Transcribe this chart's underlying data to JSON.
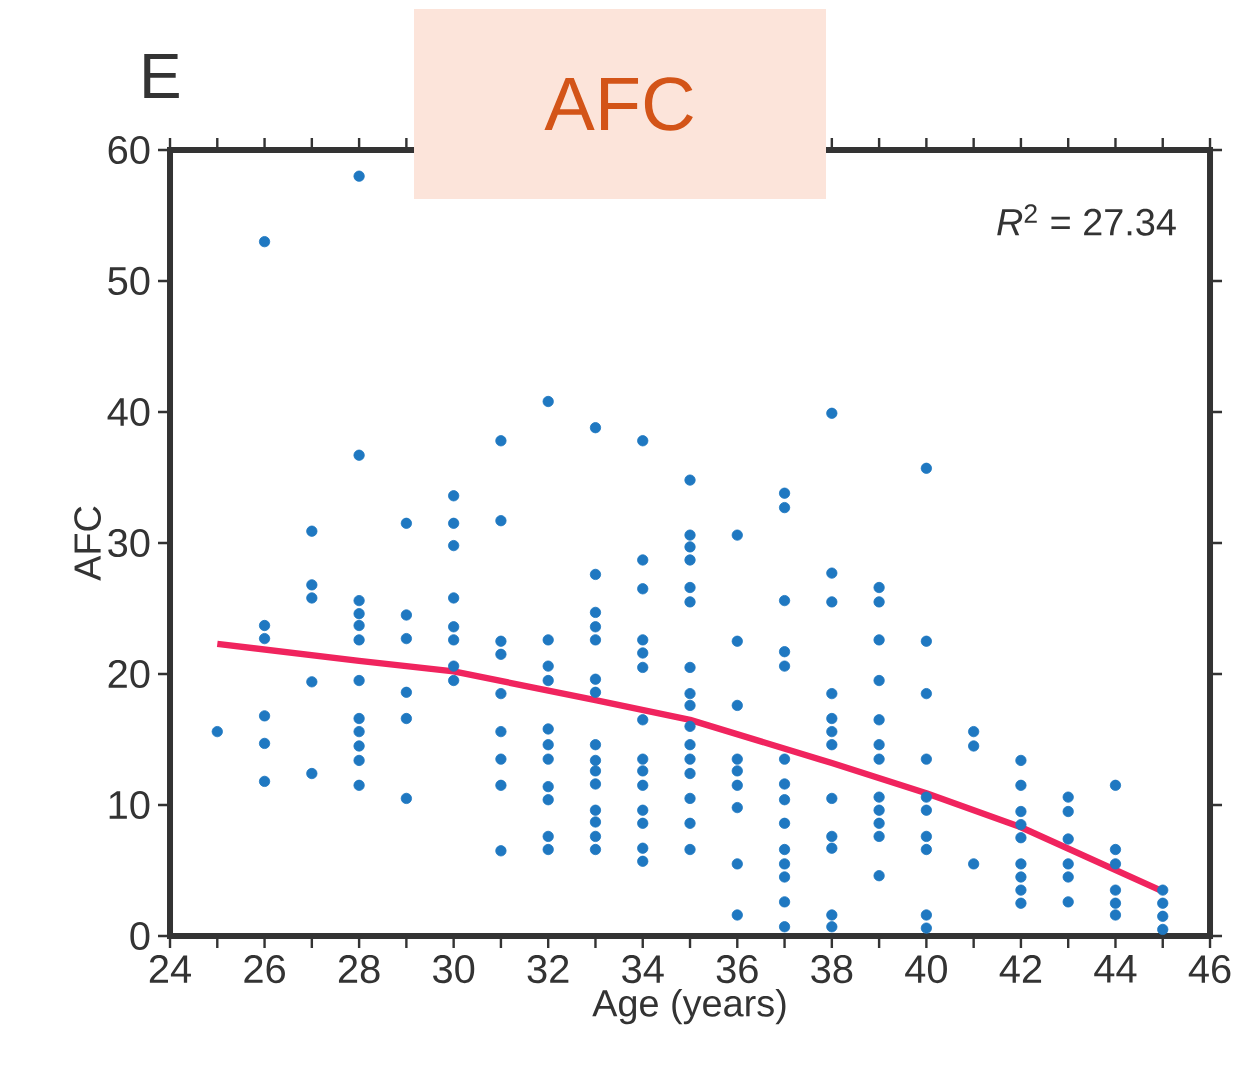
{
  "chart_data": {
    "type": "scatter",
    "title": "AFC",
    "xlabel": "Age (years)",
    "ylabel": "AFC",
    "annotations": [
      "E",
      "*R*$^{2}$ = 27.34"
    ],
    "xlim": [
      24,
      46
    ],
    "ylim": [
      0,
      60
    ],
    "xticks": [
      24,
      {
        "value": 25,
        "label": null
      },
      26,
      {
        "value": 27,
        "label": null
      },
      28,
      {
        "value": 29,
        "label": null
      },
      30,
      {
        "value": 31,
        "label": null
      },
      32,
      {
        "value": 33,
        "label": null
      },
      34,
      {
        "value": 35,
        "label": null
      },
      36,
      {
        "value": 37,
        "label": null
      },
      38,
      {
        "value": 39,
        "label": null
      },
      40,
      {
        "value": 41,
        "label": null
      },
      42,
      {
        "value": 43,
        "label": null
      },
      44,
      {
        "value": 45,
        "label": null
      },
      46
    ],
    "yticks": [
      0,
      10,
      20,
      30,
      40,
      50,
      60
    ],
    "marker": "circle",
    "series": [
      {
        "color": "#1f78c1",
        "x": [
          25,
          26,
          26,
          26,
          26,
          26,
          26,
          27,
          27,
          27,
          27,
          27,
          28,
          28,
          28,
          28,
          28,
          28,
          28,
          28,
          28,
          28,
          28,
          28,
          29,
          29,
          29,
          29,
          29,
          29,
          30,
          30,
          30,
          30,
          30,
          30,
          30,
          30,
          31,
          31,
          31,
          31,
          31,
          31,
          31,
          31,
          31,
          32,
          32,
          32,
          32,
          32,
          32,
          32,
          32,
          32,
          32,
          32,
          33,
          33,
          33,
          33,
          33,
          33,
          33,
          33,
          33,
          33,
          33,
          33,
          33,
          33,
          33,
          34,
          34,
          34,
          34,
          34,
          34,
          34,
          34,
          34,
          34,
          34,
          34,
          34,
          34,
          35,
          35,
          35,
          35,
          35,
          35,
          35,
          35,
          35,
          35,
          35,
          35,
          35,
          35,
          35,
          35,
          36,
          36,
          36,
          36,
          36,
          36,
          36,
          36,
          36,
          37,
          37,
          37,
          37,
          37,
          37,
          37,
          37,
          37,
          37,
          37,
          37,
          37,
          37,
          38,
          38,
          38,
          38,
          38,
          38,
          38,
          38,
          38,
          38,
          38,
          38,
          39,
          39,
          39,
          39,
          39,
          39,
          39,
          39,
          39,
          39,
          39,
          39,
          40,
          40,
          40,
          40,
          40,
          40,
          40,
          40,
          40,
          40,
          41,
          41,
          41,
          42,
          42,
          42,
          42,
          42,
          42,
          42,
          42,
          42,
          43,
          43,
          43,
          43,
          43,
          43,
          44,
          44,
          44,
          44,
          44,
          44,
          45,
          45,
          45,
          45
        ],
        "values": [
          15.6,
          53,
          23.7,
          22.7,
          16.8,
          14.7,
          11.8,
          30.9,
          26.8,
          25.8,
          19.4,
          12.4,
          58,
          36.7,
          25.6,
          24.6,
          23.7,
          22.6,
          19.5,
          16.6,
          15.6,
          14.5,
          13.4,
          11.5,
          31.5,
          24.5,
          22.7,
          18.6,
          16.6,
          10.5,
          33.6,
          31.5,
          29.8,
          25.8,
          23.6,
          22.6,
          20.6,
          19.5,
          37.8,
          31.7,
          22.5,
          21.5,
          18.5,
          15.6,
          13.5,
          11.5,
          6.5,
          40.8,
          22.6,
          20.6,
          19.5,
          15.8,
          14.6,
          13.5,
          11.4,
          10.4,
          7.6,
          6.6,
          38.8,
          27.6,
          24.7,
          23.6,
          22.6,
          19.6,
          18.6,
          14.6,
          13.4,
          12.6,
          11.6,
          9.6,
          8.7,
          7.6,
          6.6,
          37.8,
          28.7,
          26.5,
          22.6,
          21.6,
          20.5,
          16.5,
          13.5,
          12.6,
          11.5,
          9.6,
          8.6,
          6.7,
          5.7,
          34.8,
          30.6,
          29.7,
          28.7,
          26.6,
          25.5,
          20.5,
          18.5,
          17.6,
          16,
          14.6,
          13.5,
          12.4,
          10.5,
          8.6,
          6.6,
          30.6,
          22.5,
          17.6,
          13.5,
          12.6,
          11.5,
          9.8,
          5.5,
          1.6,
          33.8,
          32.7,
          25.6,
          21.7,
          20.6,
          13.5,
          11.6,
          10.4,
          8.6,
          6.6,
          5.5,
          4.5,
          2.6,
          0.7,
          39.9,
          27.7,
          25.5,
          18.5,
          16.6,
          15.6,
          14.6,
          10.5,
          7.6,
          6.7,
          1.6,
          0.7,
          26.6,
          25.5,
          22.6,
          19.5,
          16.5,
          14.6,
          13.5,
          10.6,
          9.6,
          8.6,
          7.6,
          4.6,
          35.7,
          22.5,
          18.5,
          13.5,
          10.6,
          9.6,
          7.6,
          6.6,
          1.6,
          0.6,
          15.6,
          14.5,
          5.5,
          13.4,
          11.5,
          9.5,
          8.5,
          7.5,
          5.5,
          4.5,
          3.5,
          2.5,
          10.6,
          9.5,
          7.4,
          5.5,
          4.5,
          2.6,
          11.5,
          6.6,
          5.5,
          3.5,
          2.5,
          1.6,
          3.5,
          2.5,
          1.5,
          0.5
        ]
      },
      {
        "type": "line",
        "color": "#f0245e",
        "marker": "none",
        "line_style": "solid",
        "x": [
          25,
          28,
          30,
          33,
          35,
          38,
          40,
          42,
          45
        ],
        "values": [
          22.3,
          21.0,
          20.2,
          18.0,
          16.5,
          13.2,
          10.9,
          8.3,
          3.4
        ]
      }
    ]
  }
}
